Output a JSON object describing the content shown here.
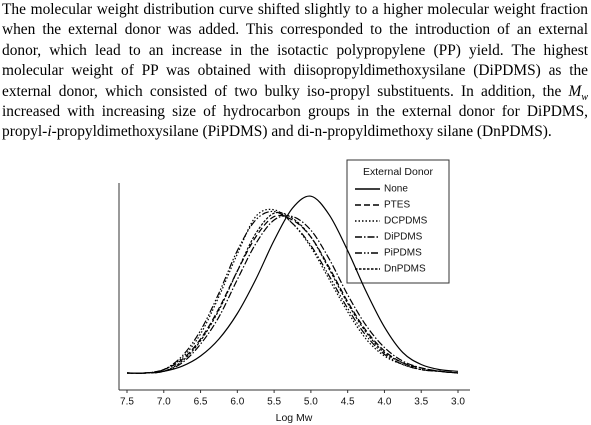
{
  "paragraph": {
    "runs": [
      {
        "text": "The molecular weight distribution curve shifted slightly to a higher molecular weight fraction when the external donor was added. This corresponded to the introduction of an external donor, which lead to an increase in the isotactic polypropylene (PP) yield. The highest molecular weight of PP was obtained with diisopropyldimethoxysilane (DiPDMS) as the external donor, which consisted of two bulky iso-propyl substituents. In addition, the ",
        "style": "normal"
      },
      {
        "text": "M",
        "style": "italic"
      },
      {
        "text": "w",
        "style": "italic-sub"
      },
      {
        "text": " increased with increasing size of hydrocarbon groups in the external donor for DiPDMS, propyl-",
        "style": "normal"
      },
      {
        "text": "i",
        "style": "italic"
      },
      {
        "text": "-propyldimethoxysilane (PiPDMS) and di-n-propyldimethoxy silane (DnPDMS).",
        "style": "normal"
      }
    ]
  },
  "chart_data": {
    "type": "line",
    "xlabel": "Log Mw",
    "legend_title": "External Donor",
    "legend": "upper right",
    "x": [
      7.5,
      7.25,
      7.0,
      6.75,
      6.5,
      6.25,
      6.0,
      5.75,
      5.5,
      5.25,
      5.0,
      4.75,
      4.5,
      4.25,
      4.0,
      3.75,
      3.5,
      3.25,
      3.0
    ],
    "xlim": [
      7.5,
      3.0
    ],
    "xticks": [
      7.5,
      {
        "value": 7,
        "label": "7.0"
      },
      6.5,
      {
        "value": 6,
        "label": "6.0"
      },
      5.5,
      {
        "value": 5,
        "label": "5.0"
      },
      4.5,
      {
        "value": 4,
        "label": "4.0"
      },
      3.5,
      {
        "value": 3,
        "label": "3.0"
      }
    ],
    "ylim": [
      -0.1,
      1.1
    ],
    "series": [
      {
        "name": "None",
        "color": "#000000",
        "dash": "none",
        "values": [
          0,
          0,
          0.01,
          0.04,
          0.1,
          0.2,
          0.35,
          0.55,
          0.78,
          0.97,
          1.04,
          0.93,
          0.72,
          0.48,
          0.27,
          0.12,
          0.05,
          0.02,
          0.01
        ]
      },
      {
        "name": "PTES",
        "color": "#000000",
        "dash": "6 3",
        "values": [
          0,
          0,
          0.02,
          0.08,
          0.2,
          0.38,
          0.6,
          0.8,
          0.92,
          0.9,
          0.8,
          0.62,
          0.42,
          0.25,
          0.13,
          0.06,
          0.03,
          0.01,
          0
        ]
      },
      {
        "name": "DCPDMS",
        "color": "#000000",
        "dash": "1.5 2",
        "values": [
          0,
          0,
          0.02,
          0.09,
          0.23,
          0.45,
          0.7,
          0.92,
          0.96,
          0.88,
          0.74,
          0.55,
          0.36,
          0.2,
          0.1,
          0.05,
          0.02,
          0.01,
          0
        ]
      },
      {
        "name": "DiPDMS",
        "color": "#000000",
        "dash": "7 2 1.5 2",
        "values": [
          0,
          0,
          0.01,
          0.06,
          0.17,
          0.33,
          0.55,
          0.76,
          0.9,
          0.92,
          0.84,
          0.67,
          0.46,
          0.28,
          0.15,
          0.07,
          0.03,
          0.01,
          0
        ]
      },
      {
        "name": "PiPDMS",
        "color": "#000000",
        "dash": "7 2 1.5 2 1.5 2",
        "values": [
          0,
          0,
          0.02,
          0.1,
          0.25,
          0.47,
          0.72,
          0.9,
          0.95,
          0.88,
          0.75,
          0.57,
          0.38,
          0.22,
          0.11,
          0.05,
          0.02,
          0.01,
          0
        ]
      },
      {
        "name": "DnPDMS",
        "color": "#000000",
        "dash": "2.5 1.5",
        "values": [
          0,
          0,
          0.01,
          0.07,
          0.19,
          0.37,
          0.6,
          0.82,
          0.94,
          0.91,
          0.8,
          0.61,
          0.41,
          0.24,
          0.12,
          0.06,
          0.02,
          0.01,
          0
        ]
      }
    ]
  }
}
